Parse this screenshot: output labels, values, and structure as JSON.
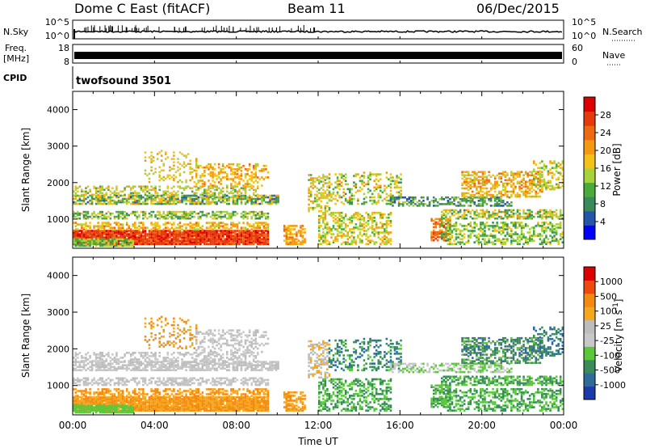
{
  "header": {
    "station": "Dome C East (fitACF)",
    "beam": "Beam 11",
    "date": "06/Dec/2015"
  },
  "strips": {
    "nsky": {
      "label": "N.Sky",
      "left_ticks": [
        "10^5",
        "10^0"
      ],
      "right_ticks": [
        "10^5",
        "10^0"
      ],
      "right_label": "N.Search"
    },
    "freq": {
      "label_line1": "Freq.",
      "label_line2": "[MHz]",
      "left_ticks": [
        "18",
        "8"
      ],
      "right_ticks": [
        "60",
        "0"
      ],
      "right_label": "Nave"
    },
    "cpid": {
      "label": "CPID",
      "program": "twofsound 3501"
    }
  },
  "colors": {
    "power_scale": [
      "#0000ff",
      "#2455a8",
      "#3a8a5c",
      "#4aab3a",
      "#a8d23a",
      "#f2c218",
      "#f39a12",
      "#ee6a12",
      "#e63a0e",
      "#dd0000"
    ],
    "velocity_scale": [
      "#dd0000",
      "#ee4a10",
      "#f38a12",
      "#f3a820",
      "#bdbdbd",
      "#c8c8c8",
      "#5ac83a",
      "#3a8a5c",
      "#2e6a9a",
      "#1c3aa8"
    ],
    "ground_scatter": "#bdbdbd"
  },
  "chart_data": [
    {
      "type": "heatmap",
      "name_panel": "power",
      "ylabel": "Slant Range [km]",
      "ylim": [
        200,
        4500
      ],
      "y_ticks": [
        "4000",
        "3000",
        "2000",
        "1000"
      ],
      "xlim_hours": [
        0,
        24
      ],
      "colorbar": {
        "label": "Power [dB]",
        "ticks": [
          "28",
          "24",
          "20",
          "16",
          "12",
          "8",
          "4"
        ],
        "range": [
          0,
          32
        ]
      }
    },
    {
      "type": "heatmap",
      "name_panel": "velocity",
      "ylabel": "Slant Range [km]",
      "ylim": [
        200,
        4500
      ],
      "y_ticks": [
        "4000",
        "3000",
        "2000",
        "1000"
      ],
      "xlim_hours": [
        0,
        24
      ],
      "colorbar": {
        "label": "Velocity [m s^-1]",
        "ticks": [
          "1000",
          "500",
          "100",
          "25",
          "-25",
          "-100",
          "-500",
          "-1000"
        ]
      },
      "x_ticks": [
        "00:00",
        "04:00",
        "08:00",
        "12:00",
        "16:00",
        "20:00",
        "00:00"
      ],
      "xlabel": "Time UT"
    }
  ]
}
